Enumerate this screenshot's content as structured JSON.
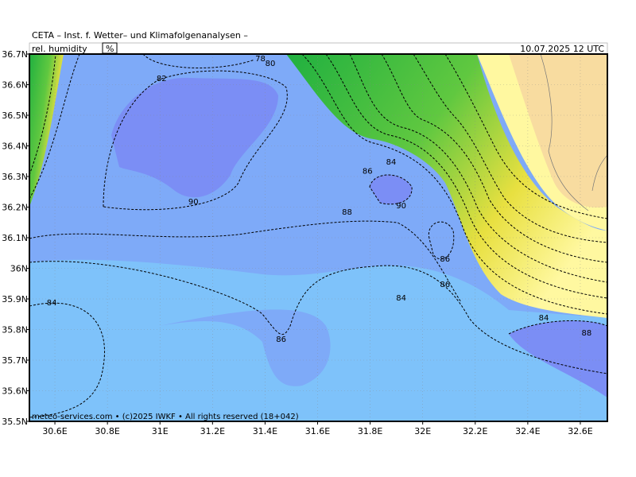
{
  "header": {
    "institute": "CETA – Inst. f. Wetter– und Klimafolgenanalysen –",
    "parameter": "rel. humidity",
    "unit": "%",
    "valid": "10.07.2025 12 UTC",
    "footer": "meteo-services.com • (c)2025 IWKF • All rights reserved (18+042)"
  },
  "map": {
    "xlim": [
      30.503,
      32.703
    ],
    "ylim": [
      35.5,
      36.7
    ],
    "xticks": [
      {
        "value": 30.6,
        "label": "30.6E"
      },
      {
        "value": 30.8,
        "label": "30.8E"
      },
      {
        "value": 31.0,
        "label": "31E"
      },
      {
        "value": 31.2,
        "label": "31.2E"
      },
      {
        "value": 31.4,
        "label": "31.4E"
      },
      {
        "value": 31.6,
        "label": "31.6E"
      },
      {
        "value": 31.8,
        "label": "31.8E"
      },
      {
        "value": 32.0,
        "label": "32E"
      },
      {
        "value": 32.2,
        "label": "32.2E"
      },
      {
        "value": 32.4,
        "label": "32.4E"
      },
      {
        "value": 32.6,
        "label": "32.6E"
      }
    ],
    "yticks": [
      {
        "value": 35.5,
        "label": "35.5N"
      },
      {
        "value": 35.6,
        "label": "35.6N"
      },
      {
        "value": 35.7,
        "label": "35.7N"
      },
      {
        "value": 35.8,
        "label": "35.8N"
      },
      {
        "value": 35.9,
        "label": "35.9N"
      },
      {
        "value": 36.0,
        "label": "36N"
      },
      {
        "value": 36.1,
        "label": "36.1N"
      },
      {
        "value": 36.2,
        "label": "36.2N"
      },
      {
        "value": 36.3,
        "label": "36.3N"
      },
      {
        "value": 36.4,
        "label": "36.4N"
      },
      {
        "value": 36.5,
        "label": "36.5N"
      },
      {
        "value": 36.6,
        "label": "36.6N"
      },
      {
        "value": 36.7,
        "label": "36.7N"
      }
    ],
    "contour_labels": [
      {
        "value": 82,
        "lon": 31.006,
        "lat": 36.622
      },
      {
        "value": 78,
        "lon": 31.382,
        "lat": 36.687
      },
      {
        "value": 80,
        "lon": 31.42,
        "lat": 36.672
      },
      {
        "value": 90,
        "lon": 31.127,
        "lat": 36.22
      },
      {
        "value": 88,
        "lon": 31.712,
        "lat": 36.186
      },
      {
        "value": 90,
        "lon": 31.918,
        "lat": 36.207
      },
      {
        "value": 86,
        "lon": 31.79,
        "lat": 36.32
      },
      {
        "value": 84,
        "lon": 31.88,
        "lat": 36.35
      },
      {
        "value": 86,
        "lon": 32.085,
        "lat": 36.032
      },
      {
        "value": 86,
        "lon": 32.085,
        "lat": 35.949
      },
      {
        "value": 84,
        "lon": 30.588,
        "lat": 35.89
      },
      {
        "value": 84,
        "lon": 31.918,
        "lat": 35.905
      },
      {
        "value": 86,
        "lon": 31.461,
        "lat": 35.77
      },
      {
        "value": 84,
        "lon": 32.461,
        "lat": 35.84
      },
      {
        "value": 88,
        "lon": 32.624,
        "lat": 35.791
      }
    ]
  }
}
